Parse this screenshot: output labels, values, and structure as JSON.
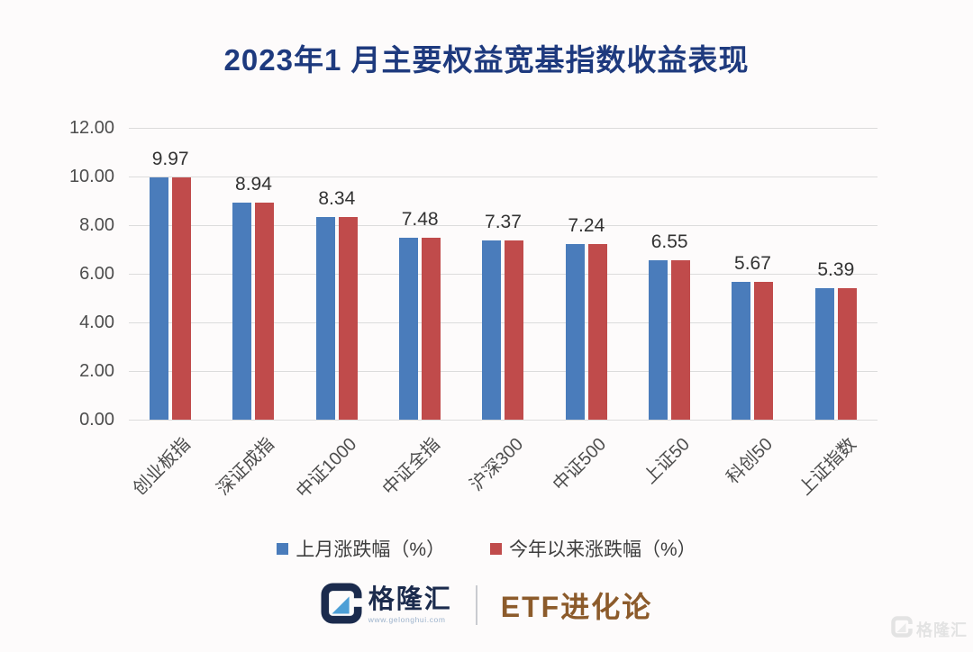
{
  "title": "2023年1 月主要权益宽基指数收益表现",
  "chart_data": {
    "type": "bar",
    "title": "2023年1 月主要权益宽基指数收益表现",
    "categories": [
      "创业板指",
      "深证成指",
      "中证1000",
      "中证全指",
      "沪深300",
      "中证500",
      "上证50",
      "科创50",
      "上证指数"
    ],
    "series": [
      {
        "name": "上月涨跌幅（%）",
        "color": "#4A7CBB",
        "values": [
          9.97,
          8.94,
          8.34,
          7.48,
          7.37,
          7.24,
          6.55,
          5.67,
          5.39
        ]
      },
      {
        "name": "今年以来涨跌幅（%）",
        "color": "#C04B4B",
        "values": [
          9.97,
          8.94,
          8.34,
          7.48,
          7.37,
          7.24,
          6.55,
          5.67,
          5.39
        ]
      }
    ],
    "data_labels": [
      "9.97",
      "8.94",
      "8.34",
      "7.48",
      "7.37",
      "7.24",
      "6.55",
      "5.67",
      "5.39"
    ],
    "ylim": [
      0,
      12
    ],
    "ytick_step": 2,
    "ytick_labels": [
      "0.00",
      "2.00",
      "4.00",
      "6.00",
      "8.00",
      "10.00",
      "12.00"
    ],
    "grid": true,
    "legend_position": "bottom"
  },
  "footer": {
    "brand": "格隆汇",
    "brand_url": "www.gelonghui.com",
    "product": "ETF进化论"
  },
  "watermark": "格隆汇",
  "colors": {
    "title": "#1E3A7E",
    "bar_blue": "#4A7CBB",
    "bar_red": "#C04B4B",
    "gridline": "#DCDCDC",
    "axis_text": "#4D4D4D",
    "brand_navy": "#1B2B4D",
    "brand_lightblue": "#4D9FD6",
    "product_brown": "#8C5B2B",
    "watermark_gray": "#E3E3E3"
  }
}
